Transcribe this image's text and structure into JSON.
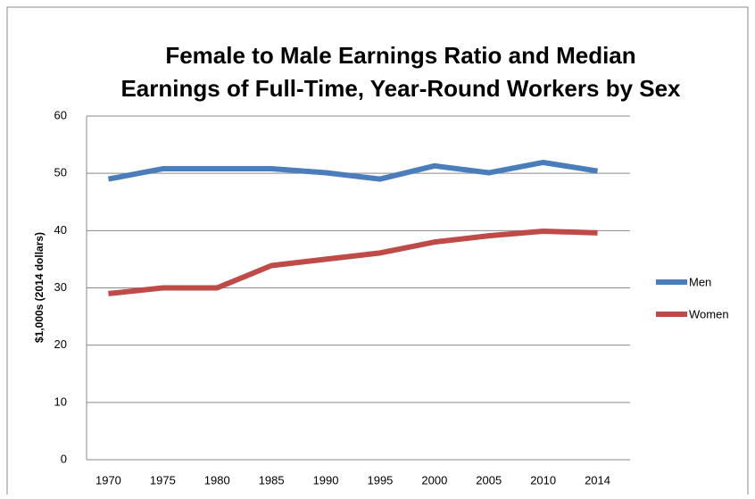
{
  "chart_data": {
    "type": "line",
    "title": [
      "Female to Male Earnings Ratio and Median",
      "Earnings of Full-Time, Year-Round Workers by Sex"
    ],
    "y_label": "$1,000s (2014 dollars)",
    "categories": [
      "1970",
      "1975",
      "1980",
      "1985",
      "1990",
      "1995",
      "2000",
      "2005",
      "2010",
      "2014"
    ],
    "series": [
      {
        "name": "Men",
        "color": "#4a7ebb",
        "values": [
          49,
          50.8,
          50.8,
          50.8,
          50.1,
          49,
          51.3,
          50.1,
          51.9,
          50.4
        ]
      },
      {
        "name": "Women",
        "color": "#be4b48",
        "values": [
          29,
          30,
          30,
          33.9,
          35,
          36.1,
          38,
          39.1,
          39.9,
          39.6
        ]
      }
    ],
    "ylim": [
      0,
      60
    ],
    "yticks": [
      0,
      10,
      20,
      30,
      40,
      50,
      60
    ],
    "grid": true,
    "legend": "right"
  }
}
